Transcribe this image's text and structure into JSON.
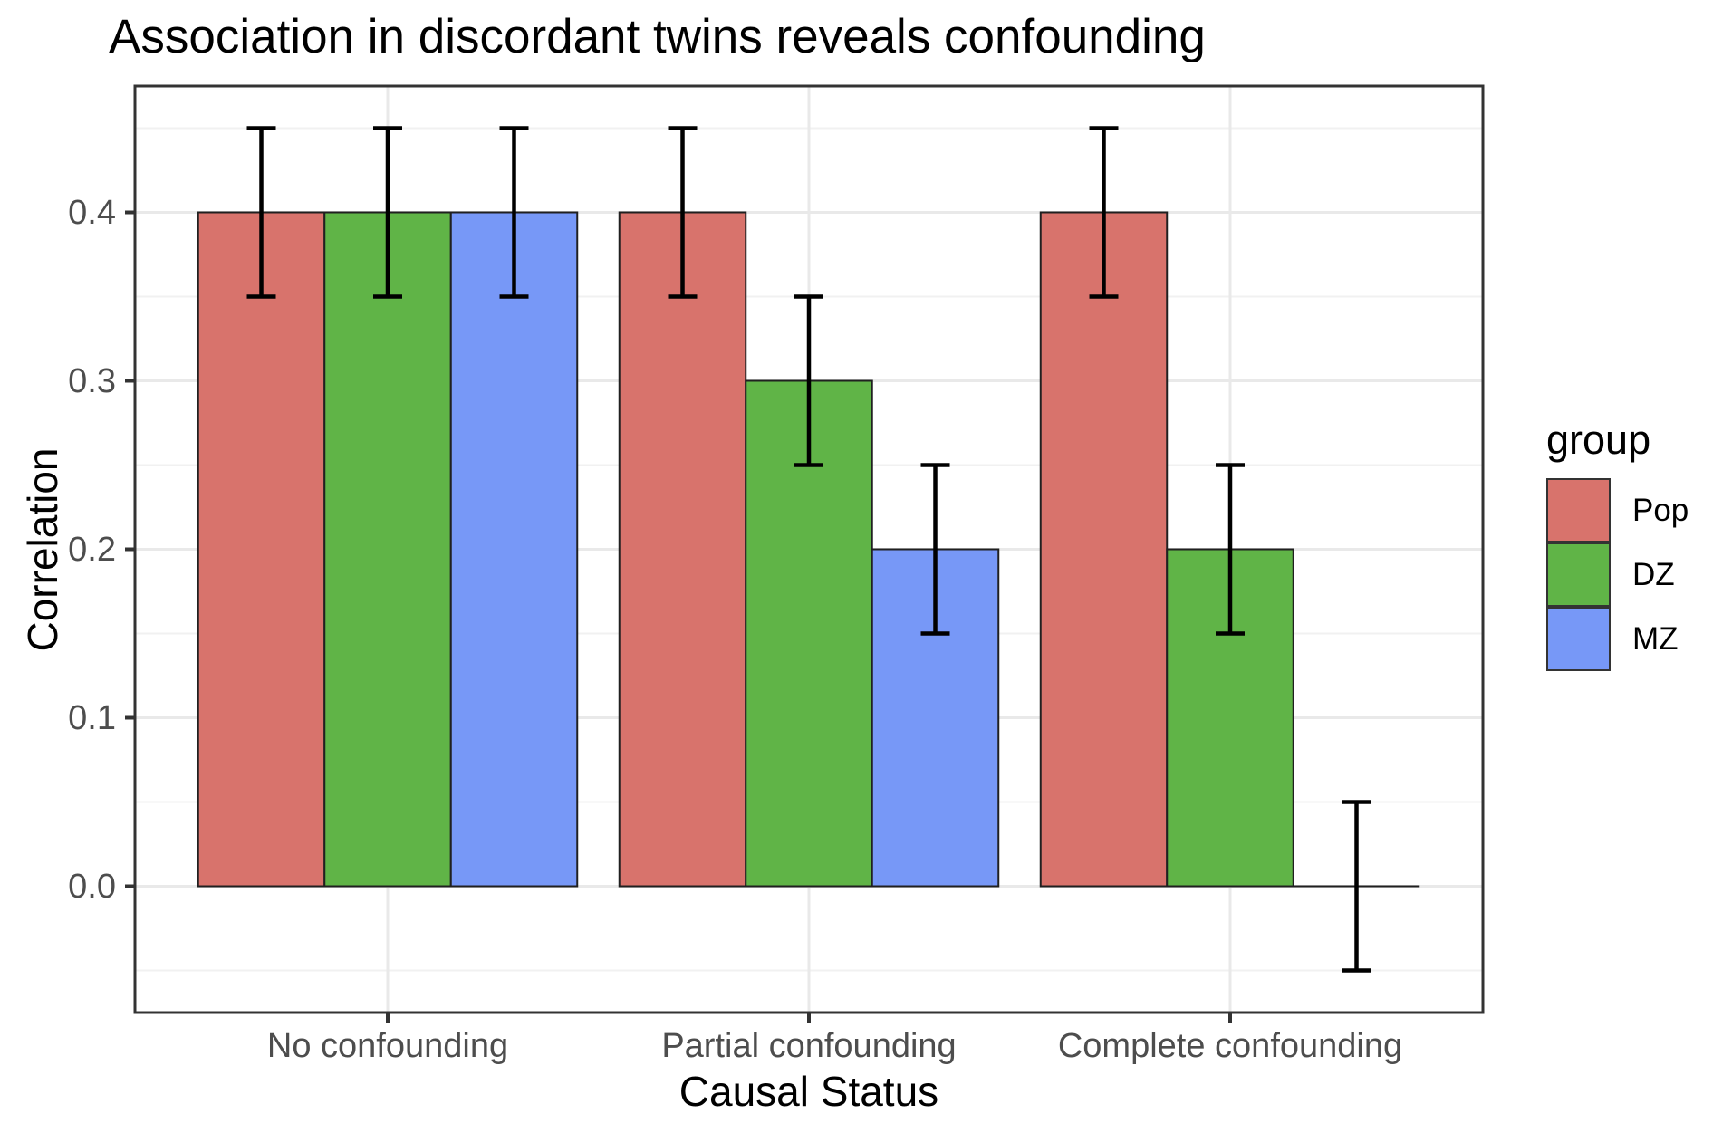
{
  "chart_data": {
    "type": "bar",
    "title": "Association in discordant twins reveals confounding",
    "xlabel": "Causal Status",
    "ylabel": "Correlation",
    "categories": [
      "No confounding",
      "Partial confounding",
      "Complete confounding"
    ],
    "series": [
      {
        "name": "Pop",
        "color": "#D8736C",
        "values": [
          0.4,
          0.4,
          0.4
        ],
        "error_low": [
          0.35,
          0.35,
          0.35
        ],
        "error_high": [
          0.45,
          0.45,
          0.45
        ]
      },
      {
        "name": "DZ",
        "color": "#60B447",
        "values": [
          0.4,
          0.3,
          0.2
        ],
        "error_low": [
          0.35,
          0.25,
          0.15
        ],
        "error_high": [
          0.45,
          0.35,
          0.25
        ]
      },
      {
        "name": "MZ",
        "color": "#7798F7",
        "values": [
          0.4,
          0.2,
          0.0
        ],
        "error_low": [
          0.35,
          0.15,
          -0.05
        ],
        "error_high": [
          0.45,
          0.25,
          0.05
        ]
      }
    ],
    "y_tick_labels": [
      "0.0",
      "0.1",
      "0.2",
      "0.3",
      "0.4"
    ],
    "y_tick_values": [
      0.0,
      0.1,
      0.2,
      0.3,
      0.4
    ],
    "y_minor_values": [
      -0.05,
      0.05,
      0.15,
      0.25,
      0.35,
      0.45
    ],
    "ylim": [
      -0.075,
      0.475
    ],
    "bar_dodge_width": 0.9,
    "grid": true,
    "legend": {
      "title": "group",
      "position": "right"
    }
  },
  "theme": {
    "background": "#FFFFFF",
    "panel_border": "#333333",
    "grid_major": "#E9E9E9",
    "grid_minor": "#F1F1F1",
    "bar_outline": "#202020",
    "errorbar_color": "#000000",
    "tick_color": "#333333",
    "axis_text_color": "#4D4D4D",
    "title_color": "#000000"
  }
}
